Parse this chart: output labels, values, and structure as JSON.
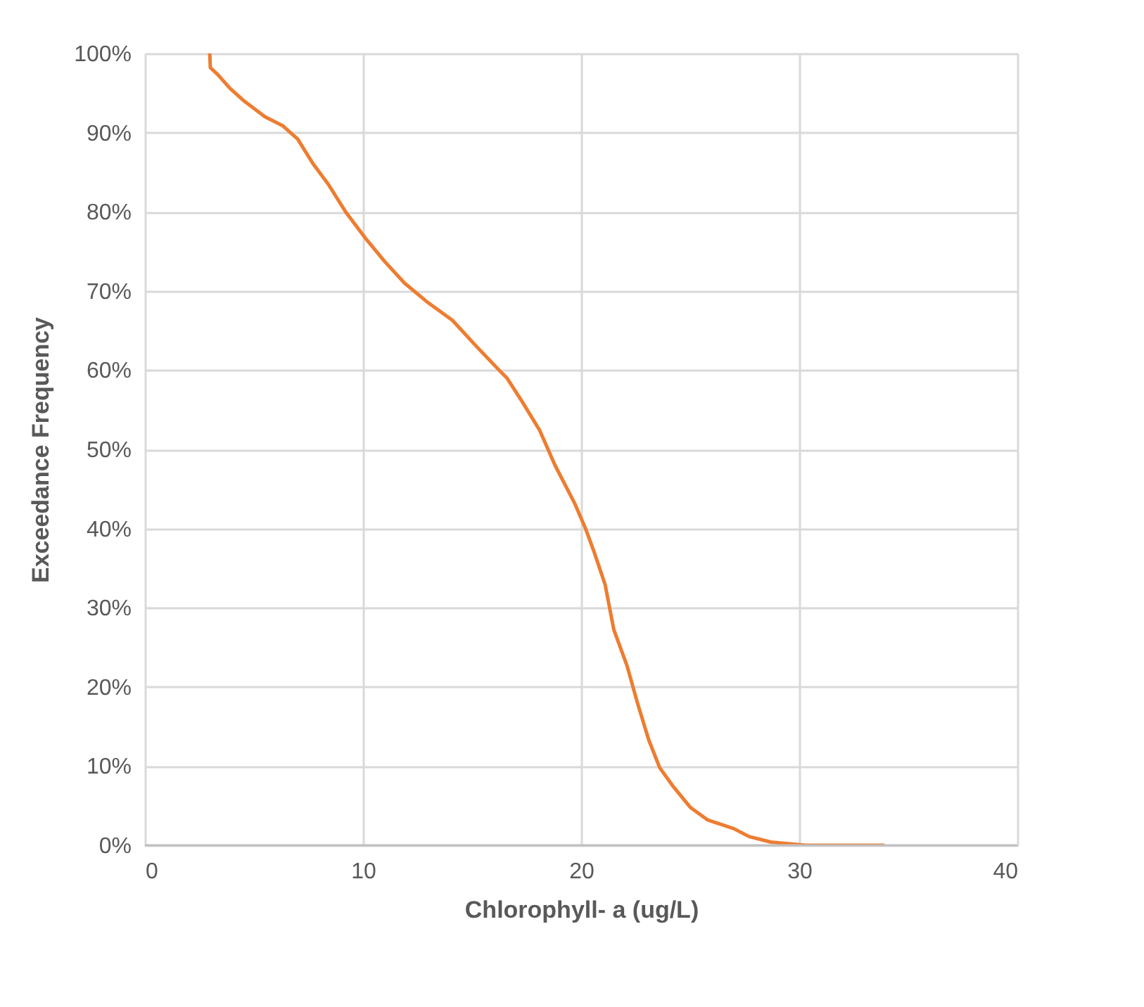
{
  "chart_data": {
    "type": "line",
    "xlabel": "Chlorophyll- a (ug/L)",
    "ylabel": "Exceedance Frequency",
    "xlim": [
      0,
      40
    ],
    "xticks": [
      0,
      10,
      20,
      30,
      40
    ],
    "ylim": [
      0,
      100
    ],
    "yticks": [
      {
        "value": 0,
        "label": "0%"
      },
      {
        "value": 10,
        "label": "10%"
      },
      {
        "value": 20,
        "label": "20%"
      },
      {
        "value": 30,
        "label": "30%"
      },
      {
        "value": 40,
        "label": "40%"
      },
      {
        "value": 50,
        "label": "50%"
      },
      {
        "value": 60,
        "label": "60%"
      },
      {
        "value": 70,
        "label": "70%"
      },
      {
        "value": 80,
        "label": "80%"
      },
      {
        "value": 90,
        "label": "90%"
      },
      {
        "value": 100,
        "label": "100%"
      }
    ],
    "grid": true,
    "marker": "none",
    "line_style": "solid",
    "series": [
      {
        "color": "#ed7d31",
        "x": [
          2.97,
          3.0,
          3.35,
          3.9,
          4.5,
          5.5,
          6.3,
          7.0,
          7.7,
          8.4,
          9.2,
          10.1,
          11.0,
          11.9,
          12.9,
          14.1,
          15.2,
          16.1,
          16.6,
          17.3,
          18.1,
          18.8,
          19.7,
          20.2,
          20.6,
          21.1,
          21.5,
          22.1,
          22.6,
          23.1,
          23.6,
          24.2,
          25.0,
          25.8,
          27.0,
          27.7,
          28.7,
          30.3,
          33.9
        ],
        "values": [
          100,
          98.2,
          97.3,
          95.6,
          94.1,
          92,
          90.9,
          89.2,
          86.1,
          83.5,
          80,
          76.7,
          73.7,
          71,
          68.7,
          66.3,
          63,
          60.4,
          59,
          56,
          52.4,
          48,
          43.2,
          40,
          37,
          32.9,
          27.2,
          22.7,
          17.8,
          13.3,
          9.8,
          7.5,
          4.8,
          3.2,
          2.1,
          1.1,
          0.4,
          0,
          0
        ]
      }
    ]
  }
}
